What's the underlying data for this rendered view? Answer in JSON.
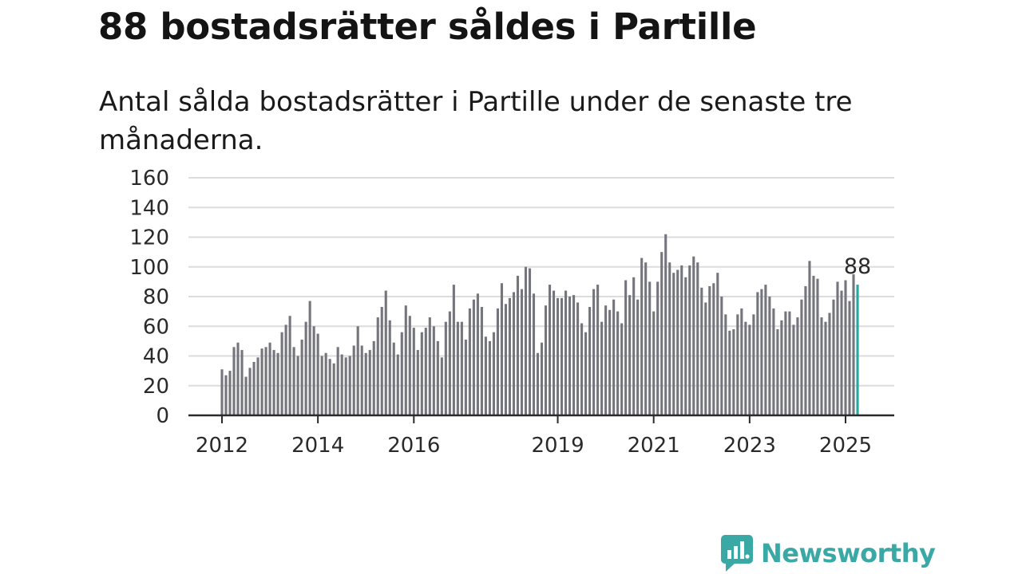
{
  "chart_data": {
    "type": "bar",
    "title": "88 bostadsrätter såldes i Partille",
    "subtitle": "Antal sålda bostadsrätter i Partille under de senaste tre månaderna.",
    "xlabel": "",
    "ylabel": "",
    "x_start": "2012-01",
    "ylim": [
      0,
      160
    ],
    "yticks": [
      0,
      20,
      40,
      60,
      80,
      100,
      120,
      140,
      160
    ],
    "xticks": [
      {
        "label": "2012",
        "year": 2012
      },
      {
        "label": "2014",
        "year": 2014
      },
      {
        "label": "2016",
        "year": 2016
      },
      {
        "label": "2019",
        "year": 2019
      },
      {
        "label": "2021",
        "year": 2021
      },
      {
        "label": "2023",
        "year": 2023
      },
      {
        "label": "2025",
        "year": 2025
      }
    ],
    "grid": true,
    "bar_color": "#75757d",
    "highlight_color": "#23a8a0",
    "highlight_label": "88",
    "values": [
      31,
      27,
      30,
      46,
      49,
      44,
      26,
      32,
      36,
      39,
      45,
      46,
      49,
      44,
      42,
      56,
      61,
      67,
      46,
      40,
      51,
      63,
      77,
      60,
      55,
      40,
      42,
      38,
      35,
      46,
      41,
      39,
      40,
      47,
      60,
      47,
      42,
      44,
      50,
      66,
      73,
      84,
      64,
      49,
      41,
      56,
      74,
      67,
      59,
      44,
      56,
      59,
      66,
      60,
      50,
      39,
      63,
      70,
      88,
      63,
      63,
      51,
      72,
      78,
      82,
      73,
      53,
      50,
      56,
      72,
      89,
      75,
      79,
      83,
      94,
      85,
      100,
      99,
      82,
      42,
      49,
      74,
      88,
      84,
      79,
      79,
      84,
      80,
      81,
      76,
      62,
      56,
      73,
      85,
      88,
      63,
      74,
      71,
      78,
      70,
      62,
      91,
      81,
      93,
      78,
      106,
      103,
      90,
      70,
      90,
      110,
      122,
      103,
      96,
      98,
      101,
      93,
      101,
      107,
      103,
      86,
      76,
      87,
      89,
      96,
      80,
      68,
      57,
      58,
      68,
      72,
      63,
      61,
      68,
      83,
      85,
      88,
      80,
      72,
      58,
      64,
      70,
      70,
      61,
      66,
      78,
      87,
      104,
      94,
      92,
      66,
      63,
      69,
      78,
      90,
      84,
      91,
      77,
      95,
      88
    ]
  },
  "branding": {
    "name": "Newsworthy",
    "color": "#3aa9a5",
    "icon": "newsworthy-logo-icon"
  }
}
